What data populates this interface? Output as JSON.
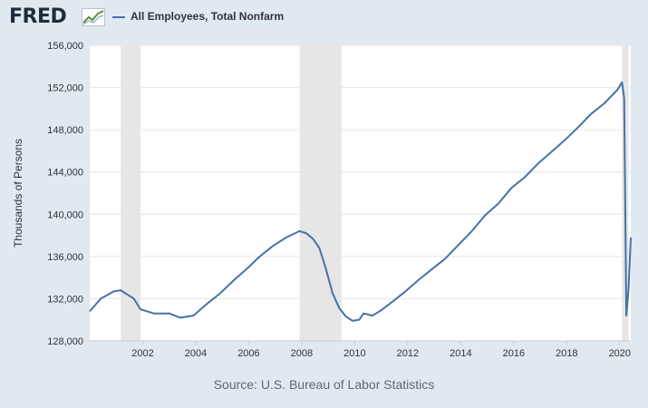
{
  "header": {
    "logo_text": "FRED",
    "logo_icon": "fred-graph-icon"
  },
  "source_label": "Source: U.S. Bureau of Labor Statistics",
  "colors": {
    "background": "#e1e9f0",
    "plot_background": "#ffffff",
    "series": "#4572a7",
    "recession": "#e6e6e6",
    "grid": "#e6e6e6"
  },
  "chart_data": {
    "type": "line",
    "title": "",
    "xlabel": "",
    "ylabel": "Thousands of Persons",
    "xlim": [
      "2000-01",
      "2020-06"
    ],
    "ylim": [
      128000,
      156000
    ],
    "y_ticks": [
      128000,
      132000,
      136000,
      140000,
      144000,
      148000,
      152000,
      156000
    ],
    "y_tick_labels": [
      "128,000",
      "132,000",
      "136,000",
      "140,000",
      "144,000",
      "148,000",
      "152,000",
      "156,000"
    ],
    "x_ticks": [
      "2002-01",
      "2004-01",
      "2006-01",
      "2008-01",
      "2010-01",
      "2012-01",
      "2014-01",
      "2016-01",
      "2018-01",
      "2020-01"
    ],
    "x_tick_labels": [
      "2002",
      "2004",
      "2006",
      "2008",
      "2010",
      "2012",
      "2014",
      "2016",
      "2018",
      "2020"
    ],
    "grid": "horizontal",
    "legend": "top-left",
    "recessions": [
      {
        "start": "2001-03",
        "end": "2001-11"
      },
      {
        "start": "2007-12",
        "end": "2009-06"
      },
      {
        "start": "2020-02",
        "end": "2020-04"
      }
    ],
    "series": [
      {
        "name": "All Employees, Total Nonfarm",
        "points": [
          [
            "2000-01",
            130800
          ],
          [
            "2000-06",
            132000
          ],
          [
            "2000-12",
            132700
          ],
          [
            "2001-03",
            132800
          ],
          [
            "2001-06",
            132400
          ],
          [
            "2001-09",
            132000
          ],
          [
            "2001-12",
            131000
          ],
          [
            "2002-06",
            130600
          ],
          [
            "2003-01",
            130600
          ],
          [
            "2003-06",
            130200
          ],
          [
            "2003-12",
            130400
          ],
          [
            "2004-06",
            131500
          ],
          [
            "2004-12",
            132500
          ],
          [
            "2005-06",
            133700
          ],
          [
            "2005-12",
            134800
          ],
          [
            "2006-06",
            136000
          ],
          [
            "2006-12",
            137000
          ],
          [
            "2007-06",
            137800
          ],
          [
            "2007-12",
            138400
          ],
          [
            "2008-03",
            138200
          ],
          [
            "2008-06",
            137700
          ],
          [
            "2008-09",
            136800
          ],
          [
            "2008-12",
            134800
          ],
          [
            "2009-03",
            132500
          ],
          [
            "2009-06",
            131100
          ],
          [
            "2009-09",
            130300
          ],
          [
            "2009-12",
            129900
          ],
          [
            "2010-03",
            130000
          ],
          [
            "2010-05",
            130600
          ],
          [
            "2010-09",
            130400
          ],
          [
            "2011-01",
            130900
          ],
          [
            "2011-06",
            131700
          ],
          [
            "2011-12",
            132700
          ],
          [
            "2012-06",
            133800
          ],
          [
            "2012-12",
            134800
          ],
          [
            "2013-06",
            135800
          ],
          [
            "2013-12",
            137100
          ],
          [
            "2014-06",
            138400
          ],
          [
            "2014-12",
            139900
          ],
          [
            "2015-06",
            141000
          ],
          [
            "2015-12",
            142500
          ],
          [
            "2016-06",
            143500
          ],
          [
            "2016-12",
            144800
          ],
          [
            "2017-06",
            145900
          ],
          [
            "2017-12",
            147000
          ],
          [
            "2018-06",
            148200
          ],
          [
            "2018-12",
            149500
          ],
          [
            "2019-06",
            150500
          ],
          [
            "2019-12",
            151800
          ],
          [
            "2020-02",
            152500
          ],
          [
            "2020-03",
            151000
          ],
          [
            "2020-04",
            130400
          ],
          [
            "2020-05",
            133000
          ],
          [
            "2020-06",
            137800
          ]
        ]
      }
    ]
  }
}
